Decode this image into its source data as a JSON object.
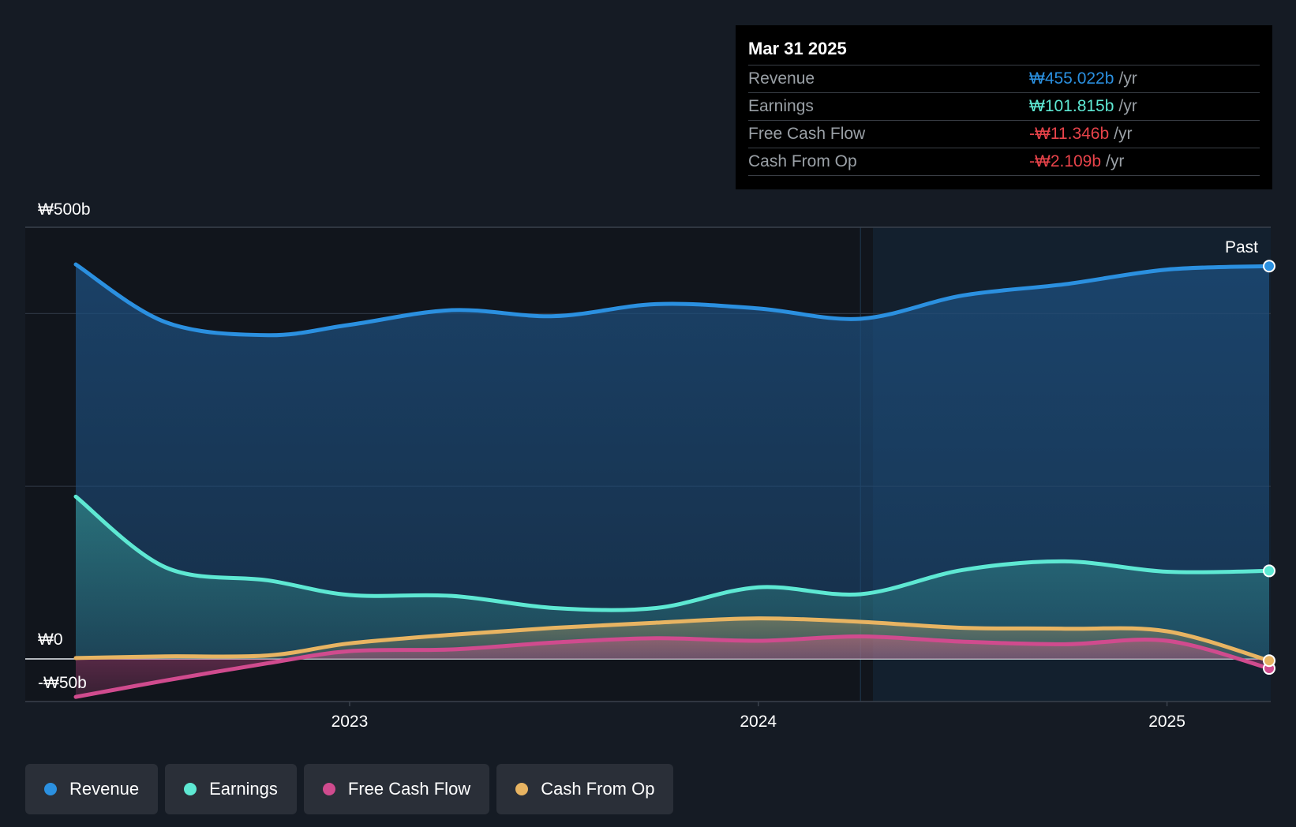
{
  "chart_data": {
    "type": "area",
    "title": "",
    "currency": "₩",
    "y_unit": "b",
    "ylim": [
      -50,
      500
    ],
    "y_tick_labels": [
      {
        "value": 500,
        "label": "₩500b"
      },
      {
        "value": 0,
        "label": "₩0"
      },
      {
        "value": -50,
        "label": "-₩50b"
      }
    ],
    "gridlines": [
      400,
      200
    ],
    "x_range": [
      2022.33,
      2025.25
    ],
    "x_ticks": [
      {
        "value": 2023.0,
        "label": "2023"
      },
      {
        "value": 2024.0,
        "label": "2024"
      },
      {
        "value": 2025.0,
        "label": "2025"
      }
    ],
    "past_divider_x": 2024.25,
    "past_label": "Past",
    "series": [
      {
        "name": "Revenue",
        "color": "#2b90e0",
        "x": [
          2022.33,
          2022.55,
          2022.8,
          2023.0,
          2023.25,
          2023.5,
          2023.75,
          2024.0,
          2024.25,
          2024.5,
          2024.75,
          2025.0,
          2025.25
        ],
        "values": [
          457,
          390,
          375,
          387,
          404,
          397,
          411,
          406,
          394,
          421,
          434,
          451,
          455
        ]
      },
      {
        "name": "Earnings",
        "color": "#5ee8d3",
        "x": [
          2022.33,
          2022.55,
          2022.8,
          2023.0,
          2023.25,
          2023.5,
          2023.75,
          2024.0,
          2024.25,
          2024.5,
          2024.75,
          2025.0,
          2025.25
        ],
        "values": [
          188,
          106,
          91,
          74,
          73,
          59,
          59,
          83,
          75,
          103,
          113,
          101,
          102
        ]
      },
      {
        "name": "Free Cash Flow",
        "color": "#d04b8e",
        "x": [
          2022.33,
          2022.55,
          2022.8,
          2023.0,
          2023.25,
          2023.5,
          2023.75,
          2024.0,
          2024.25,
          2024.5,
          2024.75,
          2025.0,
          2025.25
        ],
        "values": [
          -44,
          -25,
          -5,
          9,
          11,
          19,
          24,
          21,
          26,
          20,
          17,
          21,
          -11
        ]
      },
      {
        "name": "Cash From Op",
        "color": "#e8b462",
        "x": [
          2022.33,
          2022.55,
          2022.8,
          2023.0,
          2023.25,
          2023.5,
          2023.75,
          2024.0,
          2024.25,
          2024.5,
          2024.75,
          2025.0,
          2025.25
        ],
        "values": [
          1,
          3,
          4,
          18,
          28,
          36,
          42,
          47,
          43,
          36,
          35,
          32,
          -2
        ]
      }
    ]
  },
  "tooltip": {
    "date": "Mar 31 2025",
    "rows": [
      {
        "label": "Revenue",
        "value": "₩455.022b",
        "unit": "/yr",
        "color": "#2b90e0"
      },
      {
        "label": "Earnings",
        "value": "₩101.815b",
        "unit": "/yr",
        "color": "#5ee8d3"
      },
      {
        "label": "Free Cash Flow",
        "value": "-₩11.346b",
        "unit": "/yr",
        "color": "#e8434a"
      },
      {
        "label": "Cash From Op",
        "value": "-₩2.109b",
        "unit": "/yr",
        "color": "#e8434a"
      }
    ]
  },
  "legend": [
    {
      "label": "Revenue",
      "color": "#2b90e0"
    },
    {
      "label": "Earnings",
      "color": "#5ee8d3"
    },
    {
      "label": "Free Cash Flow",
      "color": "#d04b8e"
    },
    {
      "label": "Cash From Op",
      "color": "#e8b462"
    }
  ]
}
